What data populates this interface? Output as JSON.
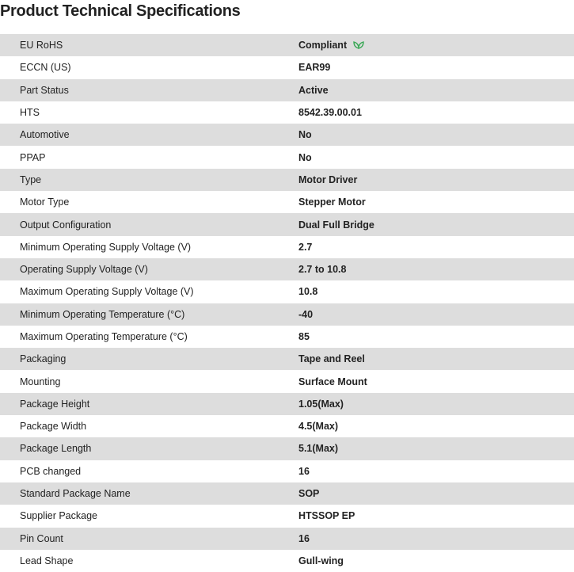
{
  "title": "Product Technical Specifications",
  "accent_color": "#3aa856",
  "rows": [
    {
      "label": "EU RoHS",
      "value": "Compliant",
      "icon": "leaf-icon"
    },
    {
      "label": "ECCN (US)",
      "value": "EAR99"
    },
    {
      "label": "Part Status",
      "value": "Active"
    },
    {
      "label": "HTS",
      "value": "8542.39.00.01"
    },
    {
      "label": "Automotive",
      "value": "No"
    },
    {
      "label": "PPAP",
      "value": "No"
    },
    {
      "label": "Type",
      "value": "Motor Driver"
    },
    {
      "label": "Motor Type",
      "value": "Stepper Motor"
    },
    {
      "label": "Output Configuration",
      "value": "Dual Full Bridge"
    },
    {
      "label": "Minimum Operating Supply Voltage (V)",
      "value": "2.7"
    },
    {
      "label": "Operating Supply Voltage (V)",
      "value": "2.7 to 10.8"
    },
    {
      "label": "Maximum Operating Supply Voltage (V)",
      "value": "10.8"
    },
    {
      "label": "Minimum Operating Temperature (°C)",
      "value": "-40"
    },
    {
      "label": "Maximum Operating Temperature (°C)",
      "value": "85"
    },
    {
      "label": "Packaging",
      "value": "Tape and Reel"
    },
    {
      "label": "Mounting",
      "value": "Surface Mount"
    },
    {
      "label": "Package Height",
      "value": "1.05(Max)"
    },
    {
      "label": "Package Width",
      "value": "4.5(Max)"
    },
    {
      "label": "Package Length",
      "value": "5.1(Max)"
    },
    {
      "label": "PCB changed",
      "value": "16"
    },
    {
      "label": "Standard Package Name",
      "value": "SOP"
    },
    {
      "label": "Supplier Package",
      "value": "HTSSOP EP"
    },
    {
      "label": "Pin Count",
      "value": "16"
    },
    {
      "label": "Lead Shape",
      "value": "Gull-wing"
    }
  ]
}
